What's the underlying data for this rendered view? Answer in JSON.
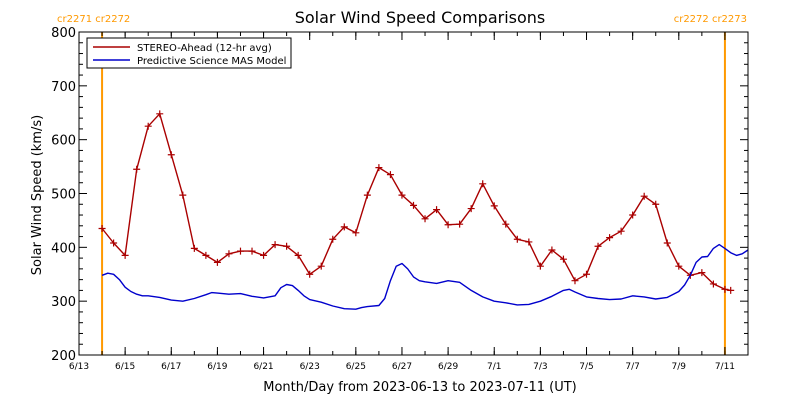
{
  "chart_data": {
    "type": "line",
    "title": "Solar Wind Speed Comparisons",
    "xlabel": "Month/Day from 2023-06-13 to 2023-07-11 (UT)",
    "ylabel": "Solar Wind Speed (km/s)",
    "xlim": [
      "2023-06-13",
      "2023-07-12"
    ],
    "ylim": [
      200,
      800
    ],
    "x_ticks": [
      {
        "date": "2023-06-13",
        "label": "6/13"
      },
      {
        "date": "2023-06-15",
        "label": "6/15"
      },
      {
        "date": "2023-06-17",
        "label": "6/17"
      },
      {
        "date": "2023-06-19",
        "label": "6/19"
      },
      {
        "date": "2023-06-21",
        "label": "6/21"
      },
      {
        "date": "2023-06-23",
        "label": "6/23"
      },
      {
        "date": "2023-06-25",
        "label": "6/25"
      },
      {
        "date": "2023-06-27",
        "label": "6/27"
      },
      {
        "date": "2023-06-29",
        "label": "6/29"
      },
      {
        "date": "2023-07-01",
        "label": "7/1"
      },
      {
        "date": "2023-07-03",
        "label": "7/3"
      },
      {
        "date": "2023-07-05",
        "label": "7/5"
      },
      {
        "date": "2023-07-07",
        "label": "7/7"
      },
      {
        "date": "2023-07-09",
        "label": "7/9"
      },
      {
        "date": "2023-07-11",
        "label": "7/11"
      }
    ],
    "y_ticks": [
      200,
      300,
      400,
      500,
      600,
      700,
      800
    ],
    "legend": {
      "placement": "top-left",
      "entries": [
        "STEREO-Ahead (12-hr avg)",
        "Predictive Science MAS Model"
      ]
    },
    "carrington_markers": [
      {
        "date": "2023-06-14 00:00",
        "label": "cr2271 cr2272",
        "align": "left"
      },
      {
        "date": "2023-07-11 00:00",
        "label": "cr2272 cr2273",
        "align": "right"
      }
    ],
    "series": [
      {
        "name": "STEREO-Ahead (12-hr avg)",
        "color": "#aa0000",
        "markers": "plus",
        "points": [
          [
            "2023-06-14 00:00",
            435
          ],
          [
            "2023-06-14 12:00",
            408
          ],
          [
            "2023-06-15 00:00",
            385
          ],
          [
            "2023-06-15 12:00",
            545
          ],
          [
            "2023-06-16 00:00",
            625
          ],
          [
            "2023-06-16 12:00",
            648
          ],
          [
            "2023-06-17 00:00",
            572
          ],
          [
            "2023-06-17 12:00",
            497
          ],
          [
            "2023-06-18 00:00",
            398
          ],
          [
            "2023-06-18 12:00",
            385
          ],
          [
            "2023-06-19 00:00",
            372
          ],
          [
            "2023-06-19 12:00",
            388
          ],
          [
            "2023-06-20 00:00",
            393
          ],
          [
            "2023-06-20 12:00",
            393
          ],
          [
            "2023-06-21 00:00",
            385
          ],
          [
            "2023-06-21 12:00",
            405
          ],
          [
            "2023-06-22 00:00",
            402
          ],
          [
            "2023-06-22 12:00",
            385
          ],
          [
            "2023-06-23 00:00",
            350
          ],
          [
            "2023-06-23 12:00",
            365
          ],
          [
            "2023-06-24 00:00",
            415
          ],
          [
            "2023-06-24 12:00",
            438
          ],
          [
            "2023-06-25 00:00",
            427
          ],
          [
            "2023-06-25 12:00",
            497
          ],
          [
            "2023-06-26 00:00",
            548
          ],
          [
            "2023-06-26 12:00",
            535
          ],
          [
            "2023-06-27 00:00",
            497
          ],
          [
            "2023-06-27 12:00",
            478
          ],
          [
            "2023-06-28 00:00",
            453
          ],
          [
            "2023-06-28 12:00",
            470
          ],
          [
            "2023-06-29 00:00",
            442
          ],
          [
            "2023-06-29 12:00",
            443
          ],
          [
            "2023-06-30 00:00",
            472
          ],
          [
            "2023-06-30 12:00",
            518
          ],
          [
            "2023-07-01 00:00",
            477
          ],
          [
            "2023-07-01 12:00",
            443
          ],
          [
            "2023-07-02 00:00",
            415
          ],
          [
            "2023-07-02 12:00",
            410
          ],
          [
            "2023-07-03 00:00",
            365
          ],
          [
            "2023-07-03 12:00",
            395
          ],
          [
            "2023-07-04 00:00",
            378
          ],
          [
            "2023-07-04 12:00",
            338
          ],
          [
            "2023-07-05 00:00",
            350
          ],
          [
            "2023-07-05 12:00",
            402
          ],
          [
            "2023-07-06 00:00",
            418
          ],
          [
            "2023-07-06 12:00",
            430
          ],
          [
            "2023-07-07 00:00",
            460
          ],
          [
            "2023-07-07 12:00",
            495
          ],
          [
            "2023-07-08 00:00",
            480
          ],
          [
            "2023-07-08 12:00",
            408
          ],
          [
            "2023-07-09 00:00",
            365
          ],
          [
            "2023-07-09 12:00",
            348
          ],
          [
            "2023-07-10 00:00",
            353
          ],
          [
            "2023-07-10 12:00",
            332
          ],
          [
            "2023-07-11 00:00",
            322
          ],
          [
            "2023-07-11 06:00",
            320
          ]
        ]
      },
      {
        "name": "Predictive Science MAS Model",
        "color": "#0000cc",
        "markers": "none",
        "points": [
          [
            "2023-06-14 00:00",
            348
          ],
          [
            "2023-06-14 06:00",
            352
          ],
          [
            "2023-06-14 12:00",
            350
          ],
          [
            "2023-06-14 18:00",
            340
          ],
          [
            "2023-06-15 00:00",
            326
          ],
          [
            "2023-06-15 06:00",
            318
          ],
          [
            "2023-06-15 12:00",
            313
          ],
          [
            "2023-06-15 18:00",
            310
          ],
          [
            "2023-06-16 00:00",
            310
          ],
          [
            "2023-06-16 12:00",
            307
          ],
          [
            "2023-06-17 00:00",
            302
          ],
          [
            "2023-06-17 12:00",
            300
          ],
          [
            "2023-06-18 00:00",
            305
          ],
          [
            "2023-06-18 12:00",
            312
          ],
          [
            "2023-06-18 18:00",
            316
          ],
          [
            "2023-06-19 00:00",
            315
          ],
          [
            "2023-06-19 12:00",
            313
          ],
          [
            "2023-06-20 00:00",
            314
          ],
          [
            "2023-06-20 12:00",
            309
          ],
          [
            "2023-06-21 00:00",
            306
          ],
          [
            "2023-06-21 12:00",
            310
          ],
          [
            "2023-06-21 18:00",
            325
          ],
          [
            "2023-06-22 00:00",
            331
          ],
          [
            "2023-06-22 06:00",
            329
          ],
          [
            "2023-06-22 12:00",
            320
          ],
          [
            "2023-06-22 18:00",
            310
          ],
          [
            "2023-06-23 00:00",
            303
          ],
          [
            "2023-06-23 12:00",
            298
          ],
          [
            "2023-06-24 00:00",
            291
          ],
          [
            "2023-06-24 12:00",
            286
          ],
          [
            "2023-06-25 00:00",
            285
          ],
          [
            "2023-06-25 06:00",
            288
          ],
          [
            "2023-06-25 12:00",
            290
          ],
          [
            "2023-06-26 00:00",
            292
          ],
          [
            "2023-06-26 06:00",
            305
          ],
          [
            "2023-06-26 12:00",
            338
          ],
          [
            "2023-06-26 18:00",
            365
          ],
          [
            "2023-06-27 00:00",
            370
          ],
          [
            "2023-06-27 06:00",
            360
          ],
          [
            "2023-06-27 12:00",
            345
          ],
          [
            "2023-06-27 18:00",
            338
          ],
          [
            "2023-06-28 00:00",
            336
          ],
          [
            "2023-06-28 12:00",
            333
          ],
          [
            "2023-06-29 00:00",
            338
          ],
          [
            "2023-06-29 12:00",
            335
          ],
          [
            "2023-06-30 00:00",
            320
          ],
          [
            "2023-06-30 12:00",
            308
          ],
          [
            "2023-07-01 00:00",
            300
          ],
          [
            "2023-07-01 12:00",
            297
          ],
          [
            "2023-07-02 00:00",
            293
          ],
          [
            "2023-07-02 12:00",
            294
          ],
          [
            "2023-07-03 00:00",
            300
          ],
          [
            "2023-07-03 12:00",
            309
          ],
          [
            "2023-07-04 00:00",
            320
          ],
          [
            "2023-07-04 06:00",
            322
          ],
          [
            "2023-07-04 12:00",
            317
          ],
          [
            "2023-07-05 00:00",
            308
          ],
          [
            "2023-07-05 12:00",
            305
          ],
          [
            "2023-07-06 00:00",
            303
          ],
          [
            "2023-07-06 12:00",
            304
          ],
          [
            "2023-07-07 00:00",
            310
          ],
          [
            "2023-07-07 12:00",
            308
          ],
          [
            "2023-07-08 00:00",
            304
          ],
          [
            "2023-07-08 12:00",
            307
          ],
          [
            "2023-07-09 00:00",
            318
          ],
          [
            "2023-07-09 06:00",
            330
          ],
          [
            "2023-07-09 12:00",
            348
          ],
          [
            "2023-07-09 18:00",
            372
          ],
          [
            "2023-07-10 00:00",
            382
          ],
          [
            "2023-07-10 06:00",
            383
          ],
          [
            "2023-07-10 12:00",
            398
          ],
          [
            "2023-07-10 18:00",
            405
          ],
          [
            "2023-07-11 00:00",
            398
          ],
          [
            "2023-07-11 06:00",
            390
          ],
          [
            "2023-07-11 12:00",
            385
          ],
          [
            "2023-07-11 18:00",
            388
          ],
          [
            "2023-07-12 00:00",
            395
          ]
        ]
      }
    ]
  },
  "colors": {
    "axis": "#000000",
    "marker_line": "#ff9900",
    "marker_text": "#ff9900"
  }
}
